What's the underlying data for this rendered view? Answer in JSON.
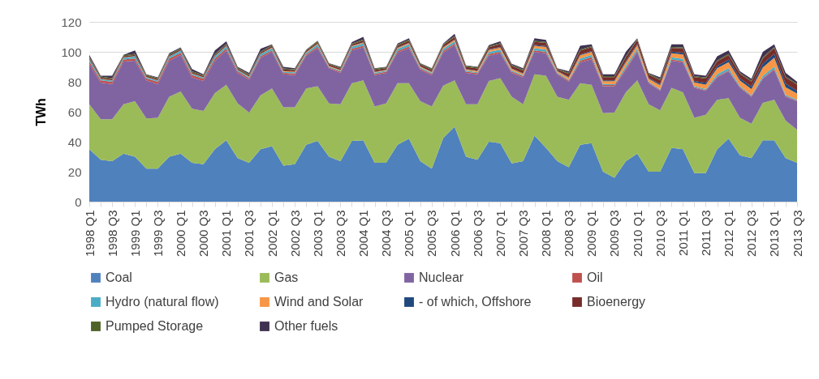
{
  "chart_data": {
    "type": "area",
    "stacked": true,
    "ylabel": "TWh",
    "ylim": [
      0,
      120
    ],
    "yticks": [
      0,
      20,
      40,
      60,
      80,
      100,
      120
    ],
    "grid": "y",
    "legend": "bottom",
    "categories": [
      "1998 Q1",
      null,
      "1998 Q3",
      null,
      "1999 Q1",
      null,
      "1999 Q3",
      null,
      "2000 Q1",
      null,
      "2000 Q3",
      null,
      "2001 Q1",
      null,
      "2001 Q3",
      null,
      "2002 Q1",
      null,
      "2002 Q3",
      null,
      "2003 Q1",
      null,
      "2003 Q3",
      null,
      "2004 Q1",
      null,
      "2004 Q3",
      null,
      "2005 Q1",
      null,
      "2005 Q3",
      null,
      "2006 Q1",
      null,
      "2006 Q3",
      null,
      "2007 Q1",
      null,
      "2007 Q3",
      null,
      "2008 Q1",
      null,
      "2008 Q3",
      null,
      "2009 Q1",
      null,
      "2009 Q3",
      null,
      "2010 Q1",
      null,
      "2010 Q3",
      null,
      "2011 Q1",
      null,
      "2011 Q3",
      null,
      "2012 Q1",
      null,
      "2012 Q3",
      null,
      "2013 Q1",
      null,
      "2013 Q3"
    ],
    "series": [
      {
        "name": "Coal",
        "color": "#4f81bd",
        "values": [
          35,
          28,
          27,
          32,
          30,
          22,
          22,
          30,
          32,
          26,
          25,
          35,
          41,
          29,
          26,
          35,
          37,
          24,
          25,
          38,
          40.5,
          30,
          27,
          40.5,
          41,
          26,
          26,
          38,
          42,
          27,
          22,
          42.5,
          50,
          30,
          28,
          40,
          39,
          25.5,
          27,
          44,
          36,
          27,
          23,
          38,
          39,
          20,
          16,
          27,
          32,
          20,
          20,
          36,
          35,
          19,
          19,
          35,
          42,
          31,
          29,
          41,
          41,
          29,
          26
        ]
      },
      {
        "name": "Gas",
        "color": "#9bbb59",
        "values": [
          30,
          27,
          28,
          33,
          37,
          33.5,
          34,
          40,
          41.5,
          36,
          35.5,
          37.5,
          37,
          36.5,
          33.5,
          36,
          38.5,
          39,
          38,
          37.5,
          36.5,
          35.5,
          38,
          38.5,
          40,
          37.5,
          39.5,
          41,
          37,
          40,
          41.5,
          35,
          31,
          35,
          37,
          40.5,
          43.5,
          44.5,
          38,
          41,
          48,
          43,
          45,
          41,
          39,
          39,
          43.5,
          46,
          49,
          45,
          41,
          40,
          38,
          37,
          39,
          33,
          27,
          25,
          23,
          25,
          27,
          25,
          22
        ]
      },
      {
        "name": "Nuclear",
        "color": "#8064a2",
        "values": [
          27,
          24.5,
          23.5,
          28.5,
          27,
          25.5,
          22.5,
          24,
          24.5,
          21,
          20,
          21.5,
          23,
          20.5,
          22,
          25,
          24.5,
          22,
          21.5,
          22,
          25.5,
          23.5,
          21,
          22,
          22,
          21,
          20.5,
          20.5,
          23.5,
          21,
          21,
          22,
          23.5,
          21,
          20,
          17,
          16.5,
          16,
          18,
          15,
          15,
          15,
          12,
          14,
          17,
          18,
          17.5,
          15,
          19,
          14,
          13,
          18,
          20,
          20,
          16,
          15,
          18,
          20,
          18,
          16,
          20,
          16,
          19
        ]
      },
      {
        "name": "Oil",
        "color": "#c0504d",
        "values": [
          1.5,
          1.5,
          1.5,
          1.3,
          1.5,
          1.2,
          1.5,
          1.5,
          1.3,
          1.5,
          1.5,
          1.5,
          1.2,
          1,
          1,
          1,
          1,
          1,
          1,
          0.8,
          1,
          0.6,
          0.8,
          1,
          1,
          0.8,
          0.8,
          1,
          1,
          0.8,
          0.8,
          1,
          1,
          0.8,
          0.8,
          1,
          1,
          0.8,
          0.8,
          1,
          1,
          0.6,
          0.8,
          1,
          1.5,
          0.8,
          0.8,
          1,
          0.8,
          0.6,
          0.6,
          0.8,
          0.8,
          0.5,
          0.5,
          0.6,
          0.6,
          0.5,
          0.5,
          0.6,
          0.6,
          0.5,
          0.5
        ]
      },
      {
        "name": "Hydro (natural flow)",
        "color": "#4bacc6",
        "values": [
          1.5,
          0.8,
          0.8,
          1.2,
          1.5,
          0.8,
          0.8,
          1.2,
          1.5,
          0.8,
          0.8,
          1.5,
          1.5,
          0.8,
          0.8,
          1.5,
          1.5,
          0.8,
          0.8,
          1,
          1.5,
          0.6,
          0.6,
          1.5,
          1.5,
          0.8,
          0.6,
          1.5,
          1.5,
          0.8,
          0.6,
          1.5,
          1.5,
          0.8,
          0.6,
          1.5,
          1.5,
          0.8,
          0.6,
          1.5,
          1.5,
          0.6,
          0.6,
          1.5,
          1.5,
          0.8,
          0.6,
          1.5,
          1.5,
          0.6,
          0.6,
          1.5,
          1.5,
          0.6,
          0.6,
          1.5,
          1.5,
          0.8,
          0.6,
          1.5,
          1.5,
          0.8,
          0.6
        ]
      },
      {
        "name": "Wind and Solar",
        "color": "#f79646",
        "values": [
          0.2,
          0.2,
          0.2,
          0.2,
          0.2,
          0.2,
          0.2,
          0.2,
          0.2,
          0.2,
          0.2,
          0.2,
          0.2,
          0.2,
          0.2,
          0.2,
          0.4,
          0.4,
          0.4,
          0.4,
          0.4,
          0.4,
          0.4,
          0.4,
          0.6,
          0.4,
          0.4,
          0.6,
          0.8,
          0.5,
          0.6,
          0.8,
          1,
          0.7,
          0.8,
          1.2,
          1.4,
          1,
          1,
          1.6,
          1.8,
          0.8,
          1.5,
          2.2,
          2,
          1.8,
          2,
          2.5,
          2.2,
          1.8,
          2.5,
          2.8,
          3,
          2.5,
          3,
          4,
          4,
          3.5,
          4,
          5.5,
          6,
          5,
          4
        ]
      },
      {
        "name": "- of which, Offshore",
        "color": "#1f497d",
        "values": [
          0,
          0,
          0,
          0,
          0,
          0,
          0,
          0,
          0,
          0,
          0,
          0,
          0,
          0,
          0,
          0,
          0,
          0,
          0,
          0,
          0,
          0,
          0,
          0,
          0.3,
          0.2,
          0.2,
          0.3,
          0.3,
          0.2,
          0.2,
          0.3,
          0.3,
          0.2,
          0.2,
          0.4,
          0.4,
          0.3,
          0.3,
          0.5,
          0.6,
          0.3,
          0.4,
          0.6,
          0.6,
          0.5,
          0.5,
          0.8,
          0.8,
          0.6,
          0.8,
          1,
          1.2,
          1,
          1.2,
          1.5,
          1.8,
          1.5,
          1.8,
          2.5,
          2.5,
          2.5,
          2
        ]
      },
      {
        "name": "Bioenergy",
        "color": "#772c2a",
        "values": [
          0.8,
          0.8,
          0.8,
          0.8,
          0.8,
          0.8,
          0.8,
          0.8,
          0.8,
          0.8,
          0.8,
          0.8,
          0.8,
          0.8,
          0.8,
          0.8,
          1,
          1,
          1,
          1,
          1,
          1,
          1,
          1,
          1.2,
          1.2,
          1,
          1.2,
          1.3,
          1.2,
          1.2,
          1.3,
          1.5,
          1.5,
          1.5,
          1.5,
          1.8,
          1.8,
          1.8,
          2,
          2,
          1,
          2,
          2.5,
          2.5,
          2.2,
          2.2,
          2.5,
          2.5,
          2.2,
          2.5,
          2.5,
          2.8,
          2.5,
          2.8,
          3,
          3,
          3,
          3.2,
          3.5,
          4,
          4,
          4
        ]
      },
      {
        "name": "Pumped Storage",
        "color": "#4f6228",
        "values": [
          0.7,
          0.7,
          0.7,
          0.7,
          0.7,
          0.7,
          0.7,
          0.7,
          0.7,
          0.7,
          0.7,
          0.7,
          0.7,
          0.7,
          0.7,
          0.7,
          0.7,
          0.7,
          0.7,
          0.5,
          0.7,
          0.6,
          0.7,
          0.7,
          0.7,
          0.7,
          0.7,
          0.7,
          0.7,
          0.7,
          0.7,
          0.7,
          0.7,
          0.7,
          0.7,
          0.7,
          0.7,
          0.7,
          0.7,
          0.7,
          0.7,
          0.5,
          0.7,
          0.7,
          0.7,
          0.7,
          0.7,
          0.7,
          0.7,
          0.7,
          0.7,
          0.7,
          0.7,
          0.7,
          0.7,
          0.7,
          0.7,
          0.7,
          0.7,
          0.7,
          0.7,
          0.7,
          0.7
        ]
      },
      {
        "name": "Other fuels",
        "color": "#3f3151",
        "values": [
          1.3,
          0.5,
          1.5,
          0.3,
          2.3,
          0.3,
          0.5,
          0.6,
          0.5,
          1.5,
          0.5,
          2.3,
          1.6,
          0.5,
          1,
          1.8,
          0.4,
          1.1,
          0.6,
          0.3,
          0.4,
          0.3,
          0.5,
          0.9,
          1.7,
          0.4,
          0.3,
          0.7,
          0.9,
          0.3,
          0.4,
          0.4,
          1.5,
          0.3,
          0.4,
          0.7,
          1.2,
          0.6,
          0.8,
          1.7,
          1.4,
          0.2,
          1,
          2.5,
          1.2,
          1.2,
          1.2,
          3,
          0.5,
          0.5,
          1.3,
          1.7,
          2,
          1.2,
          1.2,
          2.7,
          2.4,
          1,
          1.2,
          3.7,
          1.7,
          2.5,
          1.2
        ]
      }
    ]
  }
}
